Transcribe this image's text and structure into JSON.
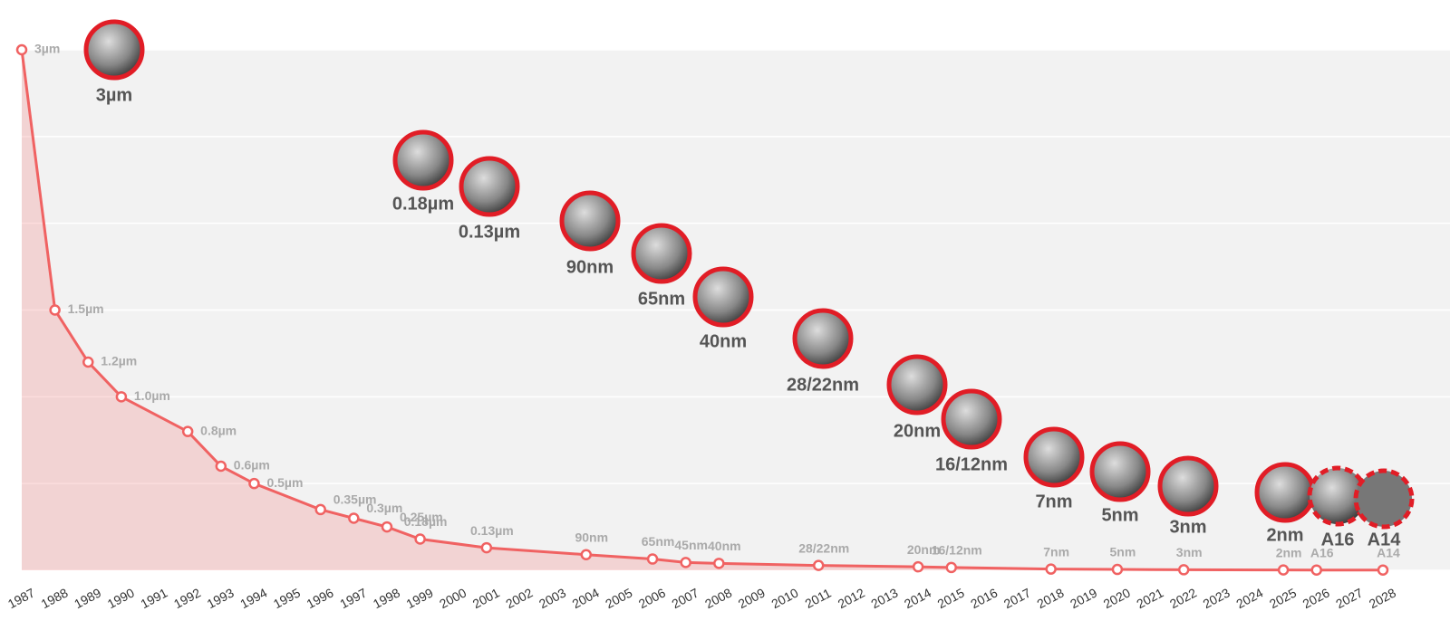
{
  "chart_data": {
    "type": "line",
    "x": [
      1987,
      1988,
      1989,
      1990,
      1992,
      1993,
      1994,
      1996,
      1997,
      1998,
      1999,
      2001,
      2004,
      2006,
      2007,
      2008,
      2011,
      2014,
      2015,
      2018,
      2020,
      2022,
      2025,
      2026,
      2028
    ],
    "series": [
      {
        "color": "#f06262",
        "values": [
          3,
          1.5,
          1.2,
          1.0,
          0.8,
          0.6,
          0.5,
          0.35,
          0.3,
          0.25,
          0.18,
          0.13,
          0.09,
          0.065,
          0.045,
          0.04,
          0.028,
          0.02,
          0.016,
          0.007,
          0.005,
          0.003,
          0.002,
          0.0016,
          0.0014
        ],
        "value_labels": [
          "3µm",
          "1.5µm",
          "1.2µm",
          "1.0µm",
          "0.8µm",
          "0.6µm",
          "0.5µm",
          "0.35µm",
          "0.3µm",
          "0.25µm",
          "0.18µm",
          "0.13µm",
          "90nm",
          "65nm",
          "45nm",
          "40nm",
          "28/22nm",
          "20nm",
          "16/12nm",
          "7nm",
          "5nm",
          "3nm",
          "2nm",
          "A16",
          "A14"
        ]
      }
    ],
    "node_labels": [
      "3µm",
      "0.18µm",
      "0.13µm",
      "90nm",
      "65nm",
      "40nm",
      "28/22nm",
      "20nm",
      "16/12nm",
      "7nm",
      "5nm",
      "3nm",
      "2nm",
      "A16",
      "A14"
    ],
    "xlim": [
      1987,
      2028
    ],
    "xticks": [
      1987,
      1988,
      1989,
      1990,
      1991,
      1992,
      1993,
      1994,
      1995,
      1996,
      1997,
      1998,
      1999,
      2000,
      2001,
      2002,
      2003,
      2004,
      2005,
      2006,
      2007,
      2008,
      2009,
      2010,
      2011,
      2012,
      2013,
      2014,
      2015,
      2016,
      2017,
      2018,
      2019,
      2020,
      2021,
      2022,
      2023,
      2024,
      2025,
      2026,
      2027,
      2028
    ],
    "ylim": [
      0,
      3
    ],
    "yticks": [
      0,
      0.5,
      1,
      1.5,
      2,
      2.5,
      3
    ],
    "grid": true
  }
}
